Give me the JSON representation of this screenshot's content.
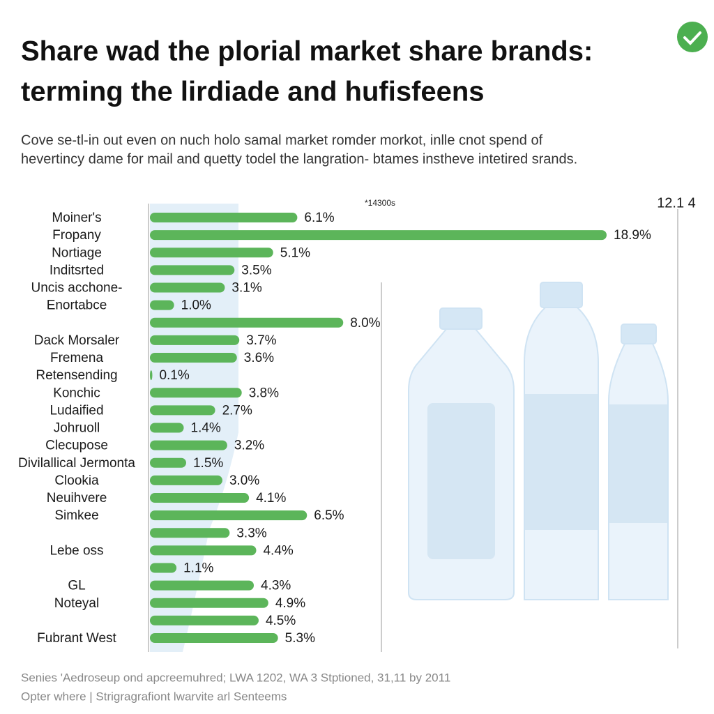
{
  "chart_data": {
    "type": "bar",
    "orientation": "horizontal",
    "title": [
      "Share wad the plorial market share brands:",
      "terming the lirdiade and hufisfeens"
    ],
    "subtitle": [
      "Cove se-tl-in out even on nuch holo samal market romder morkot, inlle cnot spend of",
      "hevertincy dame for mail and quetty todel the langration- btames instheve intetired srands."
    ],
    "annotations": [
      "*14300s",
      "12.1 4"
    ],
    "source": [
      "Senies 'Aedroseup ond apcreemuhred; LWA 1202, WA 3 Stptioned, 31,11 by 2011",
      "Opter where | Strigragrafiont lwarvite arl Senteems"
    ],
    "color": "#5cb55a",
    "categories": [
      "Moiner's",
      "Fropany",
      "Nortiage",
      "Inditsrted",
      "Uncis acchone-",
      "Enortabce",
      null,
      "Dack Morsaler",
      "Fremena",
      "Retensending",
      "Konchic",
      "Ludaified",
      "Johruoll",
      "Clecupose",
      "Divilallical Jermonta",
      "Clookia",
      "Neuihvere",
      "Simkee",
      null,
      "Lebe oss",
      null,
      "GL",
      "Noteyal",
      null,
      "Fubrant West"
    ],
    "values": [
      6.1,
      18.9,
      5.1,
      3.5,
      3.1,
      1.0,
      8.0,
      3.7,
      3.6,
      0.1,
      3.8,
      2.7,
      1.4,
      3.2,
      1.5,
      3.0,
      4.1,
      6.5,
      3.3,
      4.4,
      1.1,
      4.3,
      4.9,
      4.5,
      5.3
    ],
    "value_labels": [
      "6.1%",
      "18.9%",
      "5.1%",
      "3.5%",
      "3.1%",
      "1.0%",
      "8.0%",
      "3.7%",
      "3.6%",
      "0.1%",
      "3.8%",
      "2.7%",
      "1.4%",
      "3.2%",
      "1.5%",
      "3.0%",
      "4.1%",
      "6.5%",
      "3.3%",
      "4.4%",
      "1.1%",
      "4.3%",
      "4.9%",
      "4.5%",
      "5.3%"
    ]
  }
}
